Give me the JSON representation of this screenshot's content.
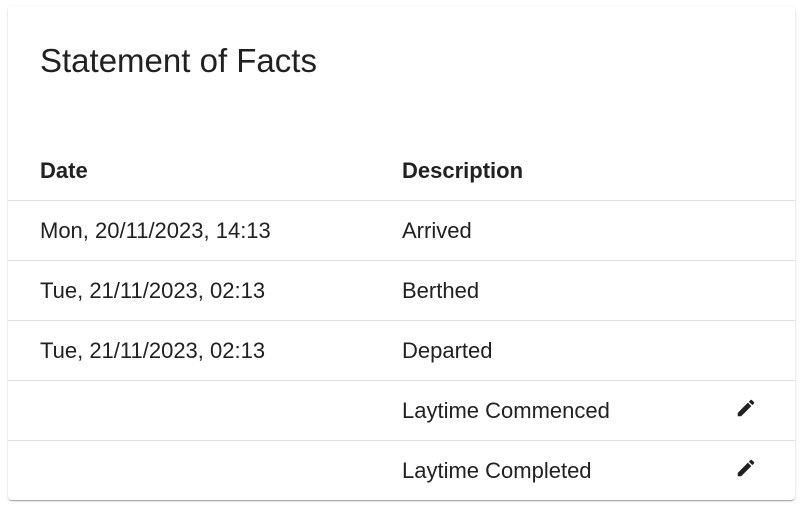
{
  "card": {
    "title": "Statement of Facts",
    "columns": [
      "Date",
      "Description"
    ],
    "rows": [
      {
        "date": "Mon, 20/11/2023, 14:13",
        "description": "Arrived",
        "editable": false
      },
      {
        "date": "Tue, 21/11/2023, 02:13",
        "description": "Berthed",
        "editable": false
      },
      {
        "date": "Tue, 21/11/2023, 02:13",
        "description": "Departed",
        "editable": false
      },
      {
        "date": "",
        "description": "Laytime Commenced",
        "editable": true,
        "icon": "pencil-icon"
      },
      {
        "date": "",
        "description": "Laytime Completed",
        "editable": true,
        "icon": "pencil-icon"
      }
    ]
  }
}
